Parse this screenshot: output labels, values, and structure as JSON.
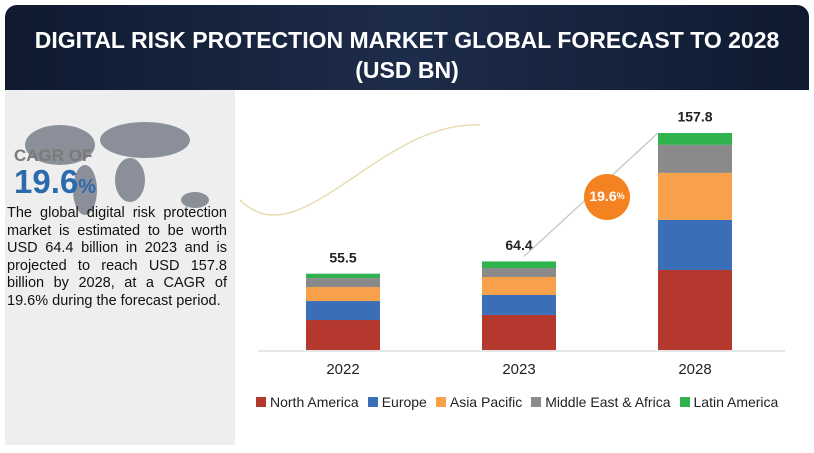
{
  "chart_data": {
    "type": "stacked-bar",
    "title": "DIGITAL RISK PROTECTION MARKET GLOBAL FORECAST TO 2028 (USD BN)",
    "categories": [
      "2022",
      "2023",
      "2028"
    ],
    "totals": [
      55.5,
      64.4,
      157.8
    ],
    "series": [
      {
        "name": "North America",
        "color": "#b5382f",
        "values": [
          21.8,
          25.5,
          58.2
        ]
      },
      {
        "name": "Europe",
        "color": "#3a6fb8",
        "values": [
          13.8,
          14.5,
          36.4
        ]
      },
      {
        "name": "Asia Pacific",
        "color": "#f7a24a",
        "values": [
          10.2,
          13.1,
          34.2
        ]
      },
      {
        "name": "Middle East & Africa",
        "color": "#8a8a8a",
        "values": [
          6.5,
          6.5,
          20.4
        ]
      },
      {
        "name": "Latin America",
        "color": "#2fb34f",
        "values": [
          3.2,
          4.8,
          8.6
        ]
      }
    ],
    "cagr": 19.6,
    "cagr_unit": "%"
  },
  "sidebar": {
    "cagr_heading": "CAGR OF",
    "cagr_value": 19.6,
    "cagr_unit": "%",
    "text": "The global digital risk protection market is estimated to be worth USD 64.4 billion in 2023 and is projected to reach USD 157.8 billion by 2028, at a CAGR of 19.6% during the forecast period."
  }
}
